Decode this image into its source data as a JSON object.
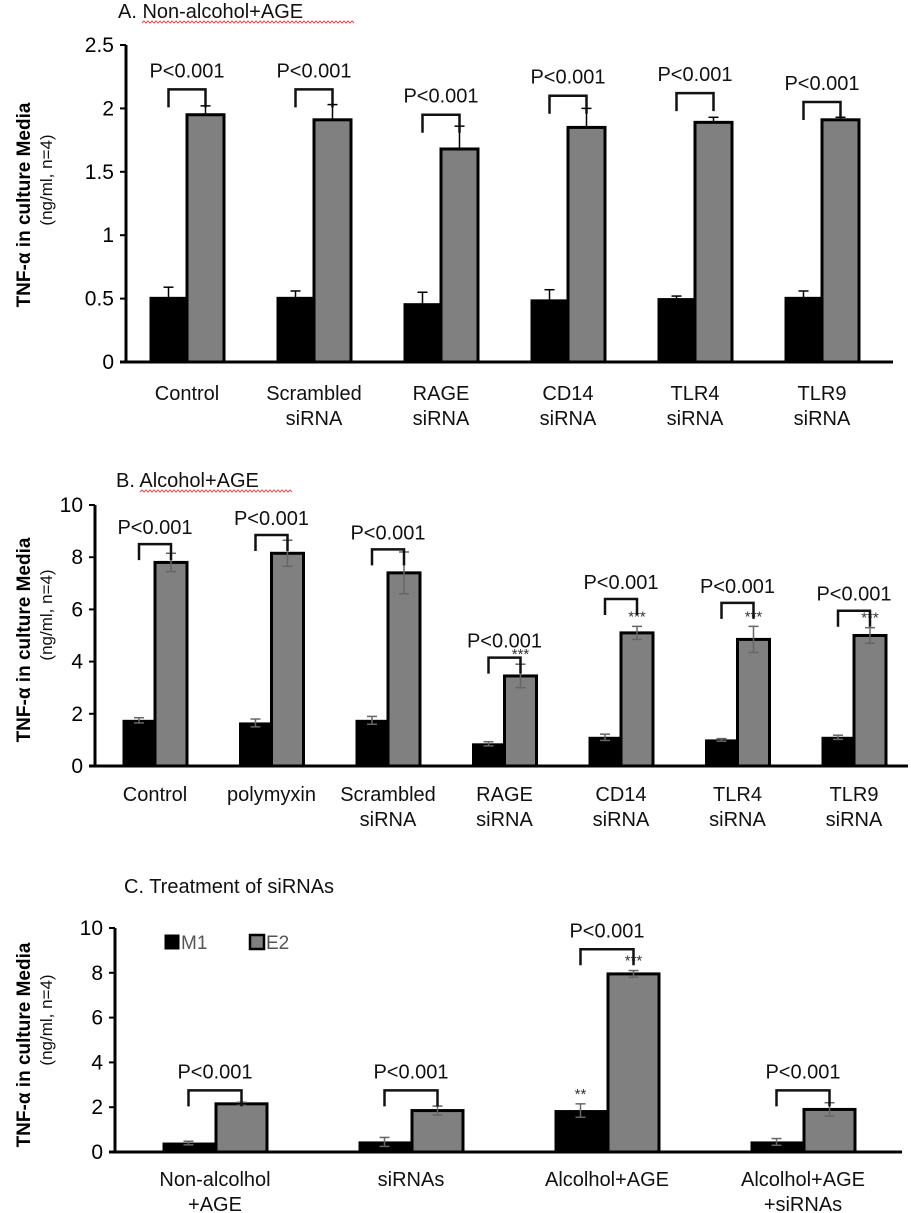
{
  "chart_data": [
    {
      "type": "bar",
      "title": "A. Non-alcohol+AGE",
      "ylabel": "TNF-α in culture Media",
      "ylabel_sub": "(ng/ml, n=4)",
      "xlabel": "",
      "ylim": [
        0,
        2.5
      ],
      "yticks": [
        "0",
        "0.5",
        "1",
        "1.5",
        "2",
        "2.5"
      ],
      "ytick_values": [
        0,
        0.5,
        1,
        1.5,
        2,
        2.5
      ],
      "categories": [
        [
          "Control"
        ],
        [
          "Scrambled",
          "siRNA"
        ],
        [
          "RAGE",
          "siRNA"
        ],
        [
          "CD14",
          "siRNA"
        ],
        [
          "TLR4",
          "siRNA"
        ],
        [
          "TLR9",
          "siRNA"
        ]
      ],
      "series": [
        {
          "name": "M1",
          "color": "#000000",
          "values": [
            0.51,
            0.51,
            0.46,
            0.49,
            0.5,
            0.51
          ],
          "errors": [
            0.08,
            0.05,
            0.09,
            0.08,
            0.02,
            0.05
          ],
          "markers": [
            "",
            "",
            "",
            "",
            "",
            ""
          ]
        },
        {
          "name": "E2",
          "color": "#808080",
          "values": [
            1.95,
            1.91,
            1.68,
            1.85,
            1.89,
            1.91
          ],
          "errors": [
            0.07,
            0.12,
            0.18,
            0.15,
            0.04,
            0.02
          ],
          "markers": [
            "",
            "",
            "",
            "",
            "",
            ""
          ]
        }
      ],
      "annotations": [
        "P<0.001",
        "P<0.001",
        "P<0.001",
        "P<0.001",
        "P<0.001",
        "P<0.001"
      ],
      "annotation_levels": [
        2.15,
        2.15,
        1.95,
        2.1,
        2.12,
        2.05
      ],
      "grid": false,
      "legend": "none"
    },
    {
      "type": "bar",
      "title": "B. Alcohol+AGE",
      "ylabel": "TNF-α in culture Media",
      "ylabel_sub": "(ng/ml, n=4)",
      "xlabel": "",
      "ylim": [
        0,
        10
      ],
      "yticks": [
        "0",
        "2",
        "4",
        "6",
        "8",
        "10"
      ],
      "ytick_values": [
        0,
        2,
        4,
        6,
        8,
        10
      ],
      "categories": [
        [
          "Control"
        ],
        [
          "polymyxin"
        ],
        [
          "Scrambled",
          "siRNA"
        ],
        [
          "RAGE",
          "siRNA"
        ],
        [
          "CD14",
          "siRNA"
        ],
        [
          "TLR4",
          "siRNA"
        ],
        [
          "TLR9",
          "siRNA"
        ]
      ],
      "series": [
        {
          "name": "M1",
          "color": "#000000",
          "values": [
            1.75,
            1.65,
            1.75,
            0.85,
            1.1,
            1.0,
            1.1
          ],
          "errors": [
            0.1,
            0.15,
            0.15,
            0.08,
            0.12,
            0.05,
            0.08
          ],
          "markers": [
            "",
            "",
            "",
            "",
            "",
            "",
            ""
          ]
        },
        {
          "name": "E2",
          "color": "#808080",
          "values": [
            7.8,
            8.15,
            7.4,
            3.45,
            5.1,
            4.85,
            5.0
          ],
          "errors": [
            0.35,
            0.5,
            0.8,
            0.45,
            0.25,
            0.5,
            0.3
          ],
          "markers": [
            "",
            "",
            "",
            "***",
            "***",
            "***",
            "***"
          ]
        }
      ],
      "annotations": [
        "P<0.001",
        "P<0.001",
        "P<0.001",
        "P<0.001",
        "P<0.001",
        "P<0.001",
        "P<0.001"
      ],
      "annotation_levels": [
        8.5,
        8.85,
        8.3,
        4.15,
        6.4,
        6.25,
        5.95
      ],
      "grid": false,
      "legend": "none"
    },
    {
      "type": "bar",
      "title": "C. Treatment of siRNAs",
      "ylabel": "TNF-α in culture Media",
      "ylabel_sub": "(ng/ml, n=4)",
      "xlabel": "",
      "ylim": [
        0,
        10
      ],
      "yticks": [
        "0",
        "2",
        "4",
        "6",
        "8",
        "10"
      ],
      "ytick_values": [
        0,
        2,
        4,
        6,
        8,
        10
      ],
      "categories": [
        [
          "Non-alcolhol",
          "+AGE"
        ],
        [
          "siRNAs"
        ],
        [
          "Alcolhol+AGE"
        ],
        [
          "Alcolhol+AGE",
          "+siRNAs"
        ]
      ],
      "series": [
        {
          "name": "M1",
          "color": "#000000",
          "values": [
            0.4,
            0.45,
            1.85,
            0.45
          ],
          "errors": [
            0.08,
            0.2,
            0.3,
            0.15
          ],
          "markers": [
            "",
            "",
            "**",
            ""
          ]
        },
        {
          "name": "E2",
          "color": "#808080",
          "values": [
            2.15,
            1.85,
            7.95,
            1.9
          ],
          "errors": [
            0.07,
            0.2,
            0.15,
            0.3
          ],
          "markers": [
            "",
            "",
            "***",
            ""
          ]
        }
      ],
      "annotations": [
        "P<0.001",
        "P<0.001",
        "P<0.001",
        "P<0.001"
      ],
      "annotation_levels": [
        2.75,
        2.75,
        9.05,
        2.75
      ],
      "grid": false,
      "legend": "top-left",
      "legend_entries": [
        "M1",
        "E2"
      ]
    }
  ]
}
